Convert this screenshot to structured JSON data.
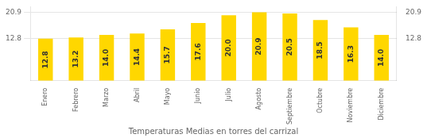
{
  "chart_data": {
    "type": "bar",
    "title": "Temperaturas Medias en torres del carrizal",
    "categories": [
      "Enero",
      "Febrero",
      "Marzo",
      "Abril",
      "Mayo",
      "Junio",
      "Julio",
      "Agosto",
      "Septiembre",
      "Octubre",
      "Noviembre",
      "Diciembre"
    ],
    "values": [
      12.8,
      13.2,
      14.0,
      14.4,
      15.7,
      17.6,
      20.0,
      20.9,
      20.5,
      18.5,
      16.3,
      14.0
    ],
    "value_labels": [
      "12.8",
      "13.2",
      "14.0",
      "14.4",
      "15.7",
      "17.6",
      "20.0",
      "20.9",
      "20.5",
      "18.5",
      "16.3",
      "14.0"
    ],
    "color": "#FFD700",
    "ylim": [
      0,
      22.6
    ],
    "yticks": [
      12.8,
      20.9
    ],
    "grid": true,
    "data_labels": true
  }
}
